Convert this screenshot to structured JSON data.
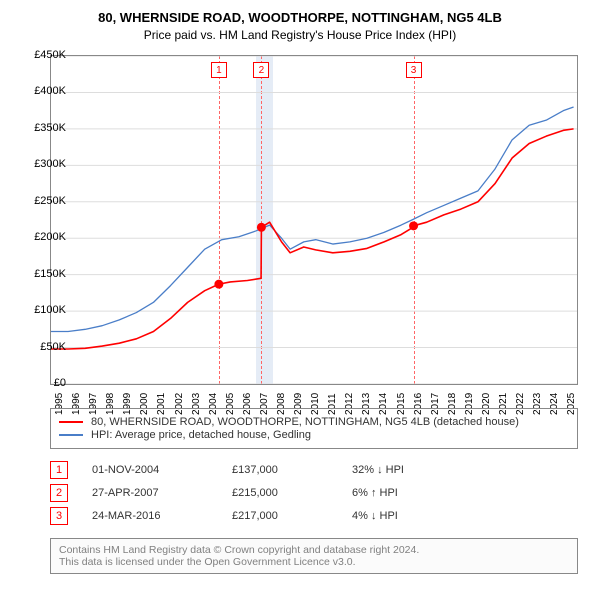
{
  "title_line1": "80, WHERNSIDE ROAD, WOODTHORPE, NOTTINGHAM, NG5 4LB",
  "title_line2": "Price paid vs. HM Land Registry's House Price Index (HPI)",
  "chart": {
    "type": "line",
    "background_color": "#ffffff",
    "grid_color": "#dddddd",
    "axis_color": "#888888",
    "x_domain": [
      1995,
      2025.8
    ],
    "xticks": [
      1995,
      1996,
      1997,
      1998,
      1999,
      2000,
      2001,
      2002,
      2003,
      2004,
      2005,
      2006,
      2007,
      2008,
      2009,
      2010,
      2011,
      2012,
      2013,
      2014,
      2015,
      2016,
      2017,
      2018,
      2019,
      2020,
      2021,
      2022,
      2023,
      2024,
      2025
    ],
    "xtick_labels": [
      "1995",
      "1996",
      "1997",
      "1998",
      "1999",
      "2000",
      "2001",
      "2002",
      "2003",
      "2004",
      "2005",
      "2006",
      "2007",
      "2008",
      "2009",
      "2010",
      "2011",
      "2012",
      "2013",
      "2014",
      "2015",
      "2016",
      "2017",
      "2018",
      "2019",
      "2020",
      "2021",
      "2022",
      "2023",
      "2024",
      "2025"
    ],
    "ylim": [
      0,
      450000
    ],
    "yticks": [
      0,
      50000,
      100000,
      150000,
      200000,
      250000,
      300000,
      350000,
      400000,
      450000
    ],
    "ytick_labels": [
      "£0",
      "£50K",
      "£100K",
      "£150K",
      "£200K",
      "£250K",
      "£300K",
      "£350K",
      "£400K",
      "£450K"
    ],
    "series": [
      {
        "name": "property_price",
        "label": "80, WHERNSIDE ROAD, WOODTHORPE, NOTTINGHAM, NG5 4LB (detached house)",
        "color": "#ff0000",
        "line_width": 1.6,
        "points": [
          [
            1995.0,
            48000
          ],
          [
            1996.0,
            48000
          ],
          [
            1997.0,
            49000
          ],
          [
            1998.0,
            52000
          ],
          [
            1999.0,
            56000
          ],
          [
            2000.0,
            62000
          ],
          [
            2001.0,
            72000
          ],
          [
            2002.0,
            90000
          ],
          [
            2003.0,
            112000
          ],
          [
            2004.0,
            128000
          ],
          [
            2004.83,
            137000
          ],
          [
            2004.84,
            137000
          ],
          [
            2005.5,
            140000
          ],
          [
            2006.5,
            142000
          ],
          [
            2007.3,
            145000
          ],
          [
            2007.32,
            215000
          ],
          [
            2007.8,
            222000
          ],
          [
            2008.5,
            195000
          ],
          [
            2009.0,
            180000
          ],
          [
            2009.8,
            188000
          ],
          [
            2010.5,
            184000
          ],
          [
            2011.5,
            180000
          ],
          [
            2012.5,
            182000
          ],
          [
            2013.5,
            186000
          ],
          [
            2014.5,
            195000
          ],
          [
            2015.5,
            205000
          ],
          [
            2016.2,
            215000
          ],
          [
            2016.23,
            217000
          ],
          [
            2017.0,
            222000
          ],
          [
            2018.0,
            232000
          ],
          [
            2019.0,
            240000
          ],
          [
            2020.0,
            250000
          ],
          [
            2021.0,
            275000
          ],
          [
            2022.0,
            310000
          ],
          [
            2023.0,
            330000
          ],
          [
            2024.0,
            340000
          ],
          [
            2025.0,
            348000
          ],
          [
            2025.6,
            350000
          ]
        ]
      },
      {
        "name": "hpi",
        "label": "HPI: Average price, detached house, Gedling",
        "color": "#4a7ec8",
        "line_width": 1.3,
        "points": [
          [
            1995.0,
            72000
          ],
          [
            1996.0,
            72000
          ],
          [
            1997.0,
            75000
          ],
          [
            1998.0,
            80000
          ],
          [
            1999.0,
            88000
          ],
          [
            2000.0,
            98000
          ],
          [
            2001.0,
            112000
          ],
          [
            2002.0,
            135000
          ],
          [
            2003.0,
            160000
          ],
          [
            2004.0,
            185000
          ],
          [
            2005.0,
            198000
          ],
          [
            2006.0,
            202000
          ],
          [
            2007.0,
            210000
          ],
          [
            2007.8,
            218000
          ],
          [
            2008.5,
            200000
          ],
          [
            2009.0,
            185000
          ],
          [
            2009.8,
            195000
          ],
          [
            2010.5,
            198000
          ],
          [
            2011.5,
            192000
          ],
          [
            2012.5,
            195000
          ],
          [
            2013.5,
            200000
          ],
          [
            2014.5,
            208000
          ],
          [
            2015.5,
            218000
          ],
          [
            2016.22,
            226000
          ],
          [
            2017.0,
            235000
          ],
          [
            2018.0,
            245000
          ],
          [
            2019.0,
            255000
          ],
          [
            2020.0,
            265000
          ],
          [
            2021.0,
            295000
          ],
          [
            2022.0,
            335000
          ],
          [
            2023.0,
            355000
          ],
          [
            2024.0,
            362000
          ],
          [
            2025.0,
            375000
          ],
          [
            2025.6,
            380000
          ]
        ]
      }
    ],
    "shaded_bands": [
      {
        "x_start": 2007.0,
        "x_end": 2008.0,
        "color": "rgba(180,200,230,0.35)"
      }
    ],
    "event_markers": [
      {
        "num": "1",
        "x": 2004.83,
        "y": 137000
      },
      {
        "num": "2",
        "x": 2007.32,
        "y": 215000
      },
      {
        "num": "3",
        "x": 2016.23,
        "y": 217000
      }
    ],
    "event_line_color": "#ff6666"
  },
  "legend": {
    "border_color": "#888888",
    "fontsize": 11
  },
  "events_table": {
    "rows": [
      {
        "num": "1",
        "date": "01-NOV-2004",
        "price": "£137,000",
        "diff": "32% ↓ HPI"
      },
      {
        "num": "2",
        "date": "27-APR-2007",
        "price": "£215,000",
        "diff": "6% ↑ HPI"
      },
      {
        "num": "3",
        "date": "24-MAR-2016",
        "price": "£217,000",
        "diff": "4% ↓ HPI"
      }
    ]
  },
  "footer": {
    "line1": "Contains HM Land Registry data © Crown copyright and database right 2024.",
    "line2": "This data is licensed under the Open Government Licence v3.0.",
    "text_color": "#808080"
  }
}
